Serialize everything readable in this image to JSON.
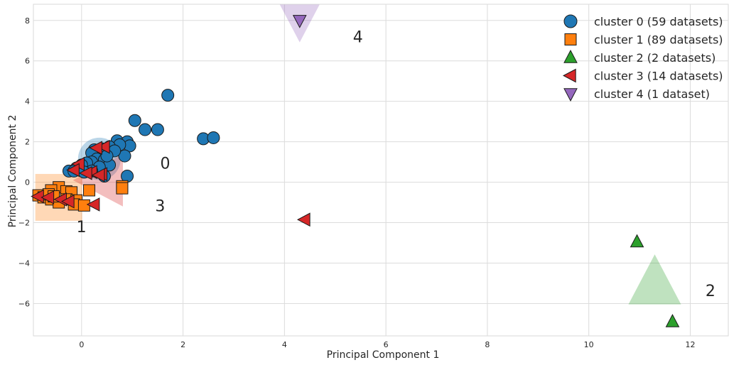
{
  "chart_data": {
    "type": "scatter",
    "xlabel": "Principal Component 1",
    "ylabel": "Principal Component 2",
    "xlim": [
      -0.95,
      12.75
    ],
    "ylim": [
      -7.6,
      8.8
    ],
    "xticks": [
      0,
      2,
      4,
      6,
      8,
      10,
      12
    ],
    "yticks": [
      -6,
      -4,
      -2,
      0,
      2,
      4,
      6,
      8
    ],
    "grid": true,
    "legend_position": "top-right",
    "series": [
      {
        "name": "cluster 0 (59 datasets)",
        "marker": "circle",
        "color": "#1f77b4",
        "centroid": [
          0.35,
          1.15
        ],
        "centroid_label": "0",
        "points": [
          [
            1.7,
            4.3
          ],
          [
            1.05,
            3.05
          ],
          [
            1.25,
            2.6
          ],
          [
            1.5,
            2.6
          ],
          [
            2.4,
            2.15
          ],
          [
            2.6,
            2.2
          ],
          [
            0.7,
            2.05
          ],
          [
            0.9,
            2.0
          ],
          [
            0.95,
            1.8
          ],
          [
            0.75,
            1.85
          ],
          [
            0.55,
            1.75
          ],
          [
            0.4,
            1.65
          ],
          [
            0.25,
            1.6
          ],
          [
            0.85,
            1.3
          ],
          [
            0.2,
            1.45
          ],
          [
            0.3,
            1.15
          ],
          [
            0.2,
            1.0
          ],
          [
            0.45,
            1.1
          ],
          [
            0.1,
            0.95
          ],
          [
            0.55,
            0.85
          ],
          [
            0.35,
            0.75
          ],
          [
            0.0,
            0.85
          ],
          [
            -0.1,
            0.7
          ],
          [
            0.2,
            0.55
          ],
          [
            0.45,
            0.3
          ],
          [
            0.9,
            0.3
          ],
          [
            -0.25,
            0.55
          ],
          [
            -0.15,
            0.55
          ],
          [
            0.05,
            0.5
          ],
          [
            0.65,
            1.55
          ],
          [
            0.5,
            1.3
          ]
        ]
      },
      {
        "name": "cluster 1 (89 datasets)",
        "marker": "square",
        "color": "#ff7f0e",
        "centroid": [
          -0.45,
          -0.75
        ],
        "centroid_label": "1",
        "points": [
          [
            0.15,
            -0.4
          ],
          [
            0.8,
            -0.2
          ],
          [
            0.8,
            -0.3
          ],
          [
            -0.45,
            -0.25
          ],
          [
            -0.6,
            -0.4
          ],
          [
            -0.3,
            -0.45
          ],
          [
            -0.2,
            -0.5
          ],
          [
            -0.85,
            -0.65
          ],
          [
            -0.75,
            -0.75
          ],
          [
            -0.6,
            -0.85
          ],
          [
            -0.3,
            -0.85
          ],
          [
            -0.1,
            -0.9
          ],
          [
            -0.45,
            -1.0
          ],
          [
            -0.15,
            -1.1
          ],
          [
            0.05,
            -1.15
          ],
          [
            -0.65,
            -0.6
          ],
          [
            -0.55,
            -0.7
          ]
        ]
      },
      {
        "name": "cluster 2 (2 datasets)",
        "marker": "triangle-up",
        "color": "#2ca02c",
        "centroid": [
          11.3,
          -5.0
        ],
        "centroid_label": "2",
        "points": [
          [
            10.95,
            -2.95
          ],
          [
            11.65,
            -6.9
          ]
        ]
      },
      {
        "name": "cluster 3 (14 datasets)",
        "marker": "triangle-left",
        "color": "#d62728",
        "centroid": [
          0.4,
          0.1
        ],
        "centroid_label": "3",
        "points": [
          [
            0.45,
            1.75
          ],
          [
            0.3,
            1.7
          ],
          [
            -0.05,
            0.9
          ],
          [
            0.2,
            0.5
          ],
          [
            0.4,
            0.4
          ],
          [
            0.1,
            0.45
          ],
          [
            -0.85,
            -0.7
          ],
          [
            -0.65,
            -0.75
          ],
          [
            -0.4,
            -0.85
          ],
          [
            -0.25,
            -0.95
          ],
          [
            0.25,
            -1.1
          ],
          [
            4.4,
            -1.85
          ],
          [
            0.35,
            0.35
          ],
          [
            -0.15,
            0.6
          ]
        ]
      },
      {
        "name": "cluster 4 (1 dataset)",
        "marker": "triangle-down",
        "color": "#9467bd",
        "centroid": [
          4.3,
          8.0
        ],
        "centroid_label": "4",
        "points": [
          [
            4.3,
            8.0
          ]
        ]
      }
    ]
  }
}
